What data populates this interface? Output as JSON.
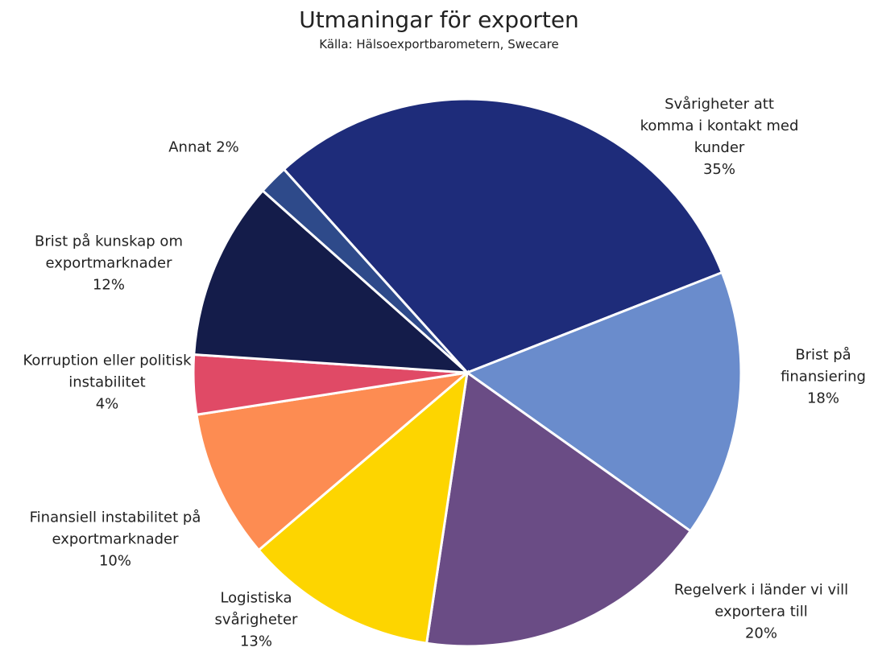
{
  "chart_data": {
    "type": "pie",
    "title": "Utmaningar för exporten",
    "subtitle": "Källa: Hälsoexportbarometern, Swecare",
    "categories": [
      "Svårigheter att komma i kontakt med kunder",
      "Brist på finansiering",
      "Regelverk i länder vi vill exportera till",
      "Logistiska svårigheter",
      "Finansiell instabilitet på exportmarknader",
      "Korruption eller politisk instabilitet",
      "Brist på kunskap om exportmarknader",
      "Annat"
    ],
    "values": [
      35,
      18,
      20,
      13,
      10,
      4,
      12,
      2
    ],
    "value_labels": [
      "35%",
      "18%",
      "20%",
      "13%",
      "10%",
      "4%",
      "12%",
      "2%"
    ],
    "colors": [
      "#1e2c7a",
      "#6a8ccc",
      "#6a4c85",
      "#fdd500",
      "#fd8c52",
      "#e04a66",
      "#141c4a",
      "#2e4a8a"
    ]
  }
}
